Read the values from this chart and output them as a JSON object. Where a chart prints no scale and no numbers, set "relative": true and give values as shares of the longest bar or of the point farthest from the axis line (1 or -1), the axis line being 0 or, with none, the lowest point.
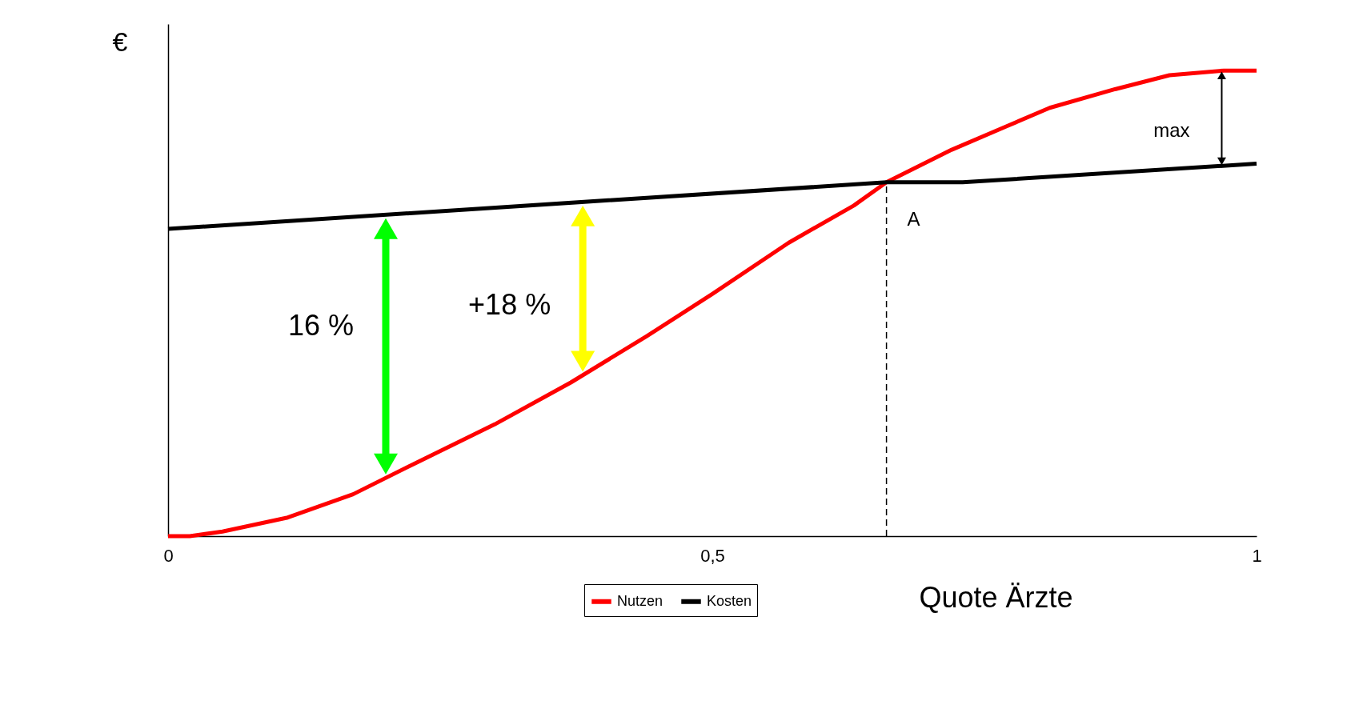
{
  "chart_data": {
    "type": "line",
    "relative": true,
    "xlabel": "Quote Ärzte",
    "ylabel": "€",
    "xlim": [
      0,
      1
    ],
    "xticks": [
      0,
      {
        "value": 0.5,
        "label": "0,5"
      },
      1
    ],
    "grid": false,
    "legend": "bottom",
    "line_style": "solid",
    "marker": "none",
    "series": [
      {
        "name": "Nutzen",
        "color": "#ff0000",
        "x": [
          0,
          0.02,
          0.05,
          0.11,
          0.17,
          0.23,
          0.3,
          0.37,
          0.44,
          0.5,
          0.57,
          0.63,
          0.66,
          0.72,
          0.77,
          0.81,
          0.87,
          0.92,
          0.97,
          1
        ],
        "values": [
          0,
          0,
          0.01,
          0.04,
          0.09,
          0.16,
          0.24,
          0.33,
          0.43,
          0.52,
          0.63,
          0.71,
          0.76,
          0.83,
          0.88,
          0.92,
          0.96,
          0.99,
          1,
          1
        ]
      },
      {
        "name": "Kosten",
        "color": "#000000",
        "x": [
          0,
          0.66,
          0.7,
          0.73,
          1
        ],
        "values": [
          0.66,
          0.76,
          0.76,
          0.76,
          0.8
        ]
      }
    ],
    "ref_lines": [
      {
        "axis": "x",
        "value": 0.66,
        "label": "A",
        "line_style": "dashed",
        "color": "#000000"
      }
    ],
    "annotations": [
      "16 %",
      "+18 %",
      "max"
    ]
  }
}
